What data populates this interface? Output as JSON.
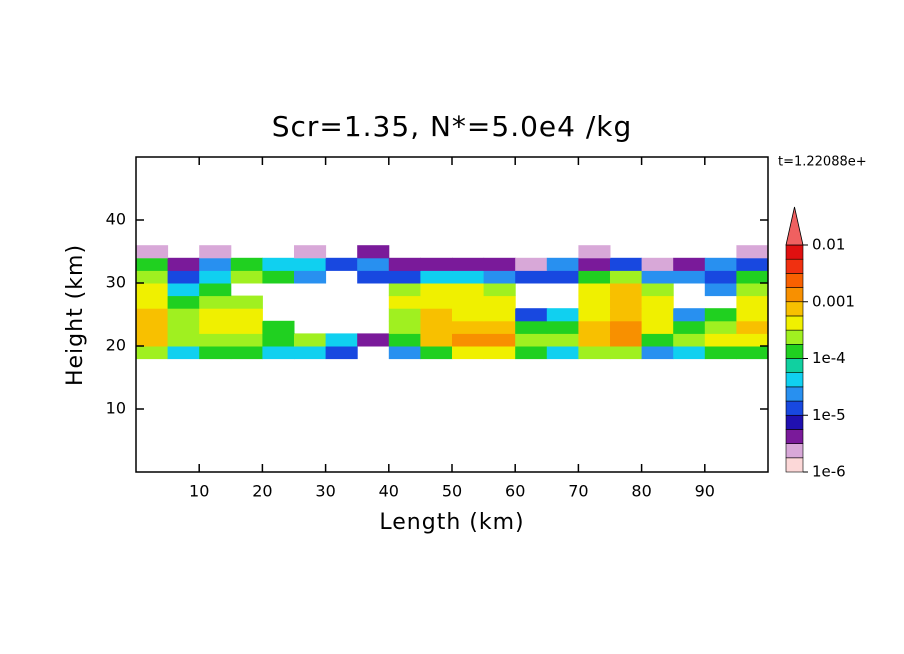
{
  "chart_data": {
    "type": "contour",
    "title": "Scr=1.35, N*=5.0e4 /kg",
    "xlabel": "Length  (km)",
    "ylabel": "Height  (km)",
    "annotation": "t=1.22088e+",
    "xlim": [
      0,
      100
    ],
    "ylim": [
      0,
      50
    ],
    "xticks": [
      10,
      20,
      30,
      40,
      50,
      60,
      70,
      80,
      90
    ],
    "yticks": [
      10,
      20,
      30,
      40
    ],
    "xbins": [
      0,
      5,
      10,
      15,
      20,
      25,
      30,
      35,
      40,
      45,
      50,
      55,
      60,
      65,
      70,
      75,
      80,
      85,
      90,
      95,
      100
    ],
    "ybins": [
      18,
      20,
      22,
      24,
      26,
      28,
      30,
      32,
      34,
      36
    ],
    "z": [
      [
        0.0002,
        5e-05,
        0.0001,
        0.0001,
        5e-05,
        5e-05,
        1e-05,
        null,
        2e-05,
        0.0001,
        0.0005,
        0.0004,
        0.0001,
        5e-05,
        0.0002,
        0.0003,
        2e-05,
        5e-05,
        0.0001,
        0.0001
      ],
      [
        0.0006,
        0.0002,
        0.0003,
        0.0003,
        0.0001,
        0.0003,
        4e-05,
        5e-06,
        0.0001,
        0.0007,
        0.001,
        0.0015,
        0.0003,
        0.0002,
        0.0006,
        0.0012,
        0.0001,
        0.0002,
        0.0004,
        0.0005
      ],
      [
        0.0008,
        0.0003,
        0.0005,
        0.0004,
        0.0001,
        null,
        null,
        null,
        0.0002,
        0.0006,
        0.0006,
        0.0006,
        0.0001,
        0.0001,
        0.0006,
        0.001,
        0.0004,
        0.0001,
        0.0003,
        0.0006
      ],
      [
        0.0007,
        0.0002,
        0.0005,
        0.0004,
        null,
        null,
        null,
        null,
        0.0003,
        0.0006,
        0.0005,
        0.0005,
        1e-05,
        5e-05,
        0.0005,
        0.0008,
        0.0005,
        2e-05,
        0.0001,
        0.0005
      ],
      [
        0.0005,
        0.0001,
        0.0003,
        0.0002,
        null,
        null,
        null,
        null,
        0.0004,
        0.0005,
        0.0005,
        0.0005,
        null,
        null,
        0.0005,
        0.0006,
        0.0004,
        null,
        null,
        0.0004
      ],
      [
        0.0004,
        5e-05,
        0.0001,
        null,
        null,
        null,
        null,
        null,
        0.0003,
        0.0004,
        0.0004,
        0.0003,
        null,
        null,
        0.0004,
        0.0006,
        0.0002,
        null,
        2e-05,
        0.0003
      ],
      [
        0.0002,
        1e-05,
        5e-05,
        0.0002,
        0.0001,
        2e-05,
        null,
        1e-05,
        1e-05,
        5e-05,
        5e-05,
        2e-05,
        1e-05,
        1e-05,
        0.0001,
        0.0003,
        3e-05,
        2e-05,
        1e-05,
        0.0001
      ],
      [
        0.0001,
        5e-06,
        2e-05,
        0.0001,
        5e-05,
        5e-05,
        1e-05,
        2e-05,
        5e-06,
        5e-06,
        5e-06,
        5e-06,
        2e-06,
        2e-05,
        5e-06,
        1e-05,
        3e-06,
        5e-06,
        2e-05,
        1e-05
      ],
      [
        2e-06,
        null,
        3e-06,
        null,
        null,
        2e-06,
        null,
        5e-06,
        null,
        null,
        null,
        null,
        null,
        null,
        2e-06,
        null,
        null,
        null,
        null,
        2e-06
      ]
    ],
    "clim": [
      1e-06,
      0.01
    ],
    "log_scale": true,
    "colors": [
      "#fcd8d8",
      "#d8a8d8",
      "#7a1a9a",
      "#2010b0",
      "#1848e0",
      "#2890f0",
      "#10d0f0",
      "#10d0a0",
      "#20d020",
      "#a0f020",
      "#f0f000",
      "#f8c000",
      "#f89000",
      "#f86000",
      "#f03010",
      "#e01010"
    ],
    "extend_color": "#f06060",
    "cticks": [
      0.01,
      0.001,
      {
        "value": 0.0001,
        "label": "1e-4"
      },
      {
        "value": 1e-05,
        "label": "1e-5"
      },
      {
        "value": 1e-06,
        "label": "1e-6"
      }
    ]
  }
}
